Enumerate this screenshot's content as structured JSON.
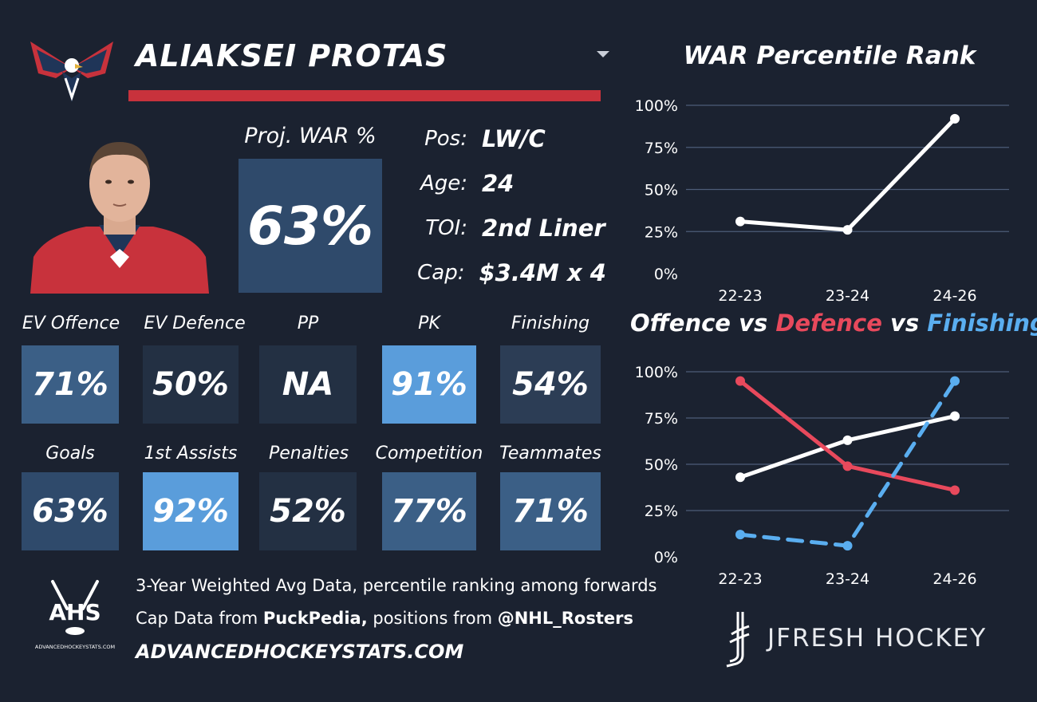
{
  "player": {
    "name": "ALIAKSEI PROTAS",
    "war_label": "Proj. WAR %",
    "war_value": "63%",
    "info": [
      {
        "key": "Pos:",
        "value": "LW/C"
      },
      {
        "key": "Age:",
        "value": "24"
      },
      {
        "key": "TOI:",
        "value": "2nd Liner"
      },
      {
        "key": "Cap:",
        "value": "$3.4M x 4"
      }
    ]
  },
  "metrics_row1": [
    {
      "label": "EV Offence",
      "value": "71%",
      "color": "#3b5f86"
    },
    {
      "label": "EV Defence",
      "value": "50%",
      "color": "#233043"
    },
    {
      "label": "PP",
      "value": "NA",
      "color": "#233043"
    },
    {
      "label": "PK",
      "value": "91%",
      "color": "#5a9ddb"
    },
    {
      "label": "Finishing",
      "value": "54%",
      "color": "#2c3d55"
    }
  ],
  "metrics_row2": [
    {
      "label": "Goals",
      "value": "63%",
      "color": "#2f4a6b"
    },
    {
      "label": "1st Assists",
      "value": "92%",
      "color": "#5a9ddb"
    },
    {
      "label": "Penalties",
      "value": "52%",
      "color": "#233043"
    },
    {
      "label": "Competition",
      "value": "77%",
      "color": "#3b5f86"
    },
    {
      "label": "Teammates",
      "value": "71%",
      "color": "#3b5f86"
    }
  ],
  "footer": {
    "line1": "3-Year Weighted Avg Data, percentile ranking among forwards",
    "line2_prefix": "Cap Data from ",
    "line2_source1": "PuckPedia,",
    "line2_mid": " positions from ",
    "line2_source2": "@NHL_Rosters",
    "site": "ADVANCEDHOCKEYSTATS.COM",
    "ahs_logo_text": "AHS",
    "ahs_logo_sub": "ADVANCEDHOCKEYSTATS.COM",
    "brand": "JFRESH HOCKEY"
  },
  "chart_data": [
    {
      "type": "line",
      "title": "WAR Percentile Rank",
      "categories": [
        "22-23",
        "23-24",
        "24-26"
      ],
      "ylim": [
        0,
        100
      ],
      "yticks": [
        0,
        25,
        50,
        75,
        100
      ],
      "ytick_labels": [
        "0%",
        "25%",
        "50%",
        "75%",
        "100%"
      ],
      "grid": true,
      "series": [
        {
          "values": [
            31,
            26,
            92
          ],
          "color": "#ffffff",
          "dash": false
        }
      ]
    },
    {
      "type": "line",
      "title_parts": [
        {
          "text": "Offence",
          "color": "#ffffff"
        },
        {
          "text": " vs ",
          "color": "#ffffff"
        },
        {
          "text": "Defence",
          "color": "#e8495c"
        },
        {
          "text": " vs ",
          "color": "#ffffff"
        },
        {
          "text": "Finishing",
          "color": "#5aaef0"
        }
      ],
      "categories": [
        "22-23",
        "23-24",
        "24-26"
      ],
      "ylim": [
        0,
        100
      ],
      "yticks": [
        0,
        25,
        50,
        75,
        100
      ],
      "ytick_labels": [
        "0%",
        "25%",
        "50%",
        "75%",
        "100%"
      ],
      "grid": true,
      "series": [
        {
          "values": [
            43,
            63,
            76
          ],
          "color": "#ffffff",
          "dash": false
        },
        {
          "values": [
            95,
            49,
            36
          ],
          "color": "#e8495c",
          "dash": false
        },
        {
          "values": [
            12,
            6,
            95
          ],
          "color": "#5aaef0",
          "dash": true
        }
      ]
    }
  ]
}
